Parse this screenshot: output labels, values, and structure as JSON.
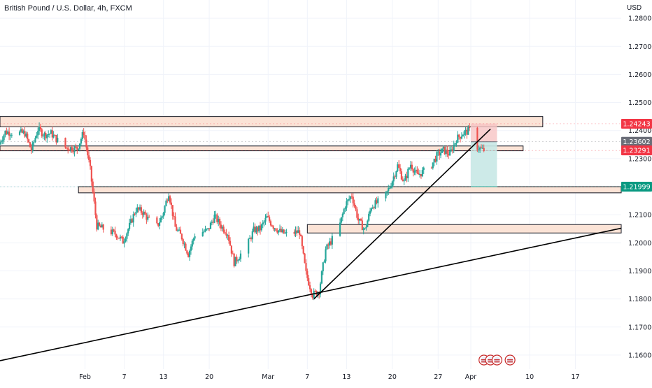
{
  "header": {
    "title": "British Pound / U.S. Dollar, 4h, FXCM",
    "currency": "USD"
  },
  "colors": {
    "up": "#26a69a",
    "down": "#ef5350",
    "zone_fill": "#fbe3d6",
    "stop_fill": "#f8c4c4",
    "target_fill": "#c8e8e5",
    "badge_red": "#f23645",
    "badge_gray": "#6b6e78",
    "badge_green": "#089981",
    "grid": "#f0f3fa",
    "axis_text": "#131722"
  },
  "chart_data": {
    "type": "candlestick",
    "symbol": "GBPUSD",
    "timeframe": "4h",
    "ylim": [
      1.155,
      1.2865
    ],
    "x_start": "2023-01-19",
    "x_end": "2023-04-24",
    "grid": true,
    "y_ticks": [
      "1.28000",
      "1.27000",
      "1.26000",
      "1.25000",
      "1.24000",
      "1.23000",
      "1.22000",
      "1.21000",
      "1.20000",
      "1.19000",
      "1.18000",
      "1.17000",
      "1.16000"
    ],
    "x_ticks": [
      {
        "label": "Feb",
        "date": "2023-02-01"
      },
      {
        "label": "7",
        "date": "2023-02-07"
      },
      {
        "label": "13",
        "date": "2023-02-13"
      },
      {
        "label": "20",
        "date": "2023-02-20"
      },
      {
        "label": "Mar",
        "date": "2023-03-01"
      },
      {
        "label": "7",
        "date": "2023-03-07"
      },
      {
        "label": "13",
        "date": "2023-03-13"
      },
      {
        "label": "20",
        "date": "2023-03-20"
      },
      {
        "label": "27",
        "date": "2023-03-27"
      },
      {
        "label": "Apr",
        "date": "2023-04-01"
      },
      {
        "label": "10",
        "date": "2023-04-10"
      },
      {
        "label": "17",
        "date": "2023-04-17"
      }
    ],
    "price_badges": [
      {
        "value": 1.24243,
        "label": "1.24243",
        "color": "#f23645"
      },
      {
        "value": 1.23602,
        "label": "1.23602",
        "color": "#6b6e78"
      },
      {
        "value": 1.23291,
        "label": "1.23291",
        "color": "#f23645"
      },
      {
        "value": 1.21999,
        "label": "1.21999",
        "color": "#089981"
      }
    ],
    "zones": [
      {
        "from": "2023-01-19",
        "to": "2023-04-12",
        "top": 1.245,
        "bottom": 1.2413
      },
      {
        "from": "2023-01-19",
        "to": "2023-04-09",
        "top": 1.2345,
        "bottom": 1.2328
      },
      {
        "from": "2023-01-31",
        "to": "2023-04-24",
        "top": 1.22,
        "bottom": 1.2178
      },
      {
        "from": "2023-03-07",
        "to": "2023-04-24",
        "top": 1.2065,
        "bottom": 1.2035
      }
    ],
    "trendlines": [
      {
        "from": {
          "date": "2023-01-19",
          "value": 1.158
        },
        "to": {
          "date": "2023-04-24",
          "value": 1.2052
        }
      },
      {
        "from": {
          "date": "2023-03-08",
          "value": 1.18
        },
        "to": {
          "date": "2023-04-04",
          "value": 1.2405
        }
      }
    ],
    "position": {
      "from": "2023-04-01",
      "to": "2023-04-05",
      "entry": 1.236,
      "stop": 1.2425,
      "target": 1.22
    },
    "event_icon_dates": [
      "2023-04-03",
      "2023-04-04",
      "2023-04-05",
      "2023-04-07"
    ],
    "price_path": [
      [
        "2023-01-19",
        1.235
      ],
      [
        "2023-01-20",
        1.2395
      ],
      [
        "2023-01-23",
        1.239
      ],
      [
        "2023-01-24",
        1.233
      ],
      [
        "2023-01-25",
        1.2405
      ],
      [
        "2023-01-26",
        1.2385
      ],
      [
        "2023-01-27",
        1.239
      ],
      [
        "2023-01-29",
        1.234
      ],
      [
        "2023-01-31",
        1.2335
      ],
      [
        "2023-02-01",
        1.2395
      ],
      [
        "2023-02-02",
        1.226
      ],
      [
        "2023-02-03",
        1.206
      ],
      [
        "2023-02-04",
        1.205
      ],
      [
        "2023-02-06",
        1.203
      ],
      [
        "2023-02-07",
        1.2005
      ],
      [
        "2023-02-08",
        1.206
      ],
      [
        "2023-02-09",
        1.212
      ],
      [
        "2023-02-10",
        1.211
      ],
      [
        "2023-02-12",
        1.205
      ],
      [
        "2023-02-13",
        1.2095
      ],
      [
        "2023-02-14",
        1.218
      ],
      [
        "2023-02-15",
        1.2055
      ],
      [
        "2023-02-16",
        1.202
      ],
      [
        "2023-02-17",
        1.196
      ],
      [
        "2023-02-18",
        1.203
      ],
      [
        "2023-02-20",
        1.2045
      ],
      [
        "2023-02-21",
        1.2095
      ],
      [
        "2023-02-22",
        1.206
      ],
      [
        "2023-02-23",
        1.2035
      ],
      [
        "2023-02-24",
        1.193
      ],
      [
        "2023-02-26",
        1.199
      ],
      [
        "2023-02-27",
        1.2045
      ],
      [
        "2023-02-28",
        1.205
      ],
      [
        "2023-03-01",
        1.209
      ],
      [
        "2023-03-02",
        1.206
      ],
      [
        "2023-03-03",
        1.204
      ],
      [
        "2023-03-04",
        1.203
      ],
      [
        "2023-03-06",
        1.204
      ],
      [
        "2023-03-07",
        1.189
      ],
      [
        "2023-03-08",
        1.1815
      ],
      [
        "2023-03-09",
        1.183
      ],
      [
        "2023-03-10",
        1.1975
      ],
      [
        "2023-03-12",
        1.205
      ],
      [
        "2023-03-13",
        1.2135
      ],
      [
        "2023-03-14",
        1.217
      ],
      [
        "2023-03-15",
        1.208
      ],
      [
        "2023-03-16",
        1.2045
      ],
      [
        "2023-03-17",
        1.213
      ],
      [
        "2023-03-19",
        1.216
      ],
      [
        "2023-03-20",
        1.221
      ],
      [
        "2023-03-21",
        1.2275
      ],
      [
        "2023-03-22",
        1.2215
      ],
      [
        "2023-03-23",
        1.228
      ],
      [
        "2023-03-24",
        1.224
      ],
      [
        "2023-03-26",
        1.227
      ],
      [
        "2023-03-27",
        1.231
      ],
      [
        "2023-03-28",
        1.233
      ],
      [
        "2023-03-29",
        1.2315
      ],
      [
        "2023-03-30",
        1.237
      ],
      [
        "2023-03-31",
        1.239
      ],
      [
        "2023-04-01",
        1.24
      ],
      [
        "2023-04-02",
        1.2345
      ],
      [
        "2023-04-03",
        1.233
      ]
    ]
  }
}
